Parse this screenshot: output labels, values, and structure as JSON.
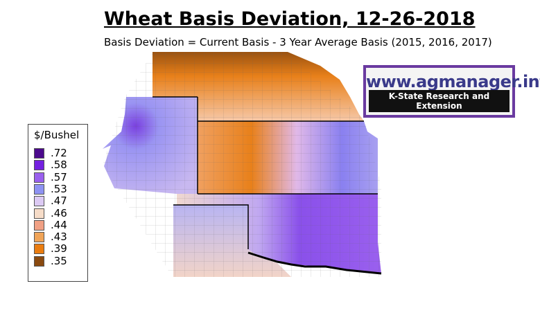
{
  "header": {
    "title": "Wheat Basis Deviation, 12-26-2018",
    "subtitle": "Basis Deviation = Current Basis - 3 Year Average Basis (2015, 2016, 2017)"
  },
  "logo": {
    "url": "www.agmanager.info",
    "tagline": "K-State Research and Extension"
  },
  "legend": {
    "title": "$/Bushel",
    "items": [
      {
        "label": ".72",
        "color": "#4b0a8c"
      },
      {
        "label": ".58",
        "color": "#7420e0"
      },
      {
        "label": ".57",
        "color": "#9a60ee"
      },
      {
        "label": ".53",
        "color": "#8e92f2"
      },
      {
        "label": ".47",
        "color": "#dccaf4"
      },
      {
        "label": ".46",
        "color": "#f6dcc8"
      },
      {
        "label": ".44",
        "color": "#f0a084"
      },
      {
        "label": ".43",
        "color": "#f0a458"
      },
      {
        "label": ".39",
        "color": "#ea7c10"
      },
      {
        "label": ".35",
        "color": "#8a4a10"
      }
    ]
  }
}
